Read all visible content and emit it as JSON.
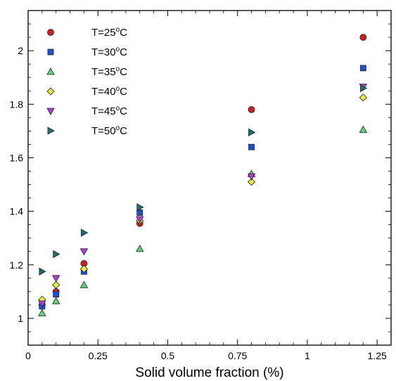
{
  "chart_data": {
    "type": "scatter",
    "title": "",
    "xlabel": "Solid volume fraction (%)",
    "ylabel": "",
    "xlim": [
      0,
      1.3
    ],
    "ylim": [
      0.9,
      2.15
    ],
    "xticks": [
      0,
      0.25,
      0.5,
      0.75,
      1,
      1.25
    ],
    "xtick_labels": [
      "0",
      "0.25",
      "0.5",
      "0.75",
      "1",
      "1.25"
    ],
    "yticks": [
      1,
      1.2,
      1.4,
      1.6,
      1.8,
      2
    ],
    "ytick_labels": [
      "1",
      "1.2",
      "1.4",
      "1.6",
      "1.8",
      "2"
    ],
    "grid": false,
    "legend_position": "top-left",
    "series": [
      {
        "name": "T=25",
        "marker": "circle",
        "color": "#cc1f1f",
        "x": [
          0.05,
          0.1,
          0.2,
          0.4,
          0.8,
          1.2
        ],
        "y": [
          1.05,
          1.1,
          1.205,
          1.355,
          1.78,
          2.05
        ]
      },
      {
        "name": "T=30",
        "marker": "square",
        "color": "#1f4fd8",
        "x": [
          0.05,
          0.1,
          0.2,
          0.4,
          0.8,
          1.2
        ],
        "y": [
          1.045,
          1.09,
          1.175,
          1.395,
          1.64,
          1.935
        ]
      },
      {
        "name": "T=35",
        "marker": "triangle-up",
        "color": "#5cd67a",
        "x": [
          0.05,
          0.1,
          0.2,
          0.4,
          0.8,
          1.2
        ],
        "y": [
          1.02,
          1.065,
          1.125,
          1.26,
          1.54,
          1.705
        ]
      },
      {
        "name": "T=40",
        "marker": "diamond",
        "color": "#e6f03a",
        "x": [
          0.05,
          0.1,
          0.2,
          0.4,
          0.8,
          1.2
        ],
        "y": [
          1.07,
          1.125,
          1.185,
          1.365,
          1.51,
          1.825
        ]
      },
      {
        "name": "T=45",
        "marker": "triangle-down",
        "color": "#b43cdc",
        "x": [
          0.05,
          0.1,
          0.2,
          0.4,
          0.8,
          1.2
        ],
        "y": [
          1.055,
          1.15,
          1.25,
          1.37,
          1.53,
          1.865
        ]
      },
      {
        "name": "T=50",
        "marker": "triangle-right",
        "color": "#1f6e70",
        "x": [
          0.05,
          0.1,
          0.2,
          0.4,
          0.8,
          1.2
        ],
        "y": [
          1.175,
          1.24,
          1.32,
          1.415,
          1.695,
          1.86
        ]
      }
    ],
    "legend_suffix_sup": "o",
    "legend_suffix_unit": "C"
  }
}
